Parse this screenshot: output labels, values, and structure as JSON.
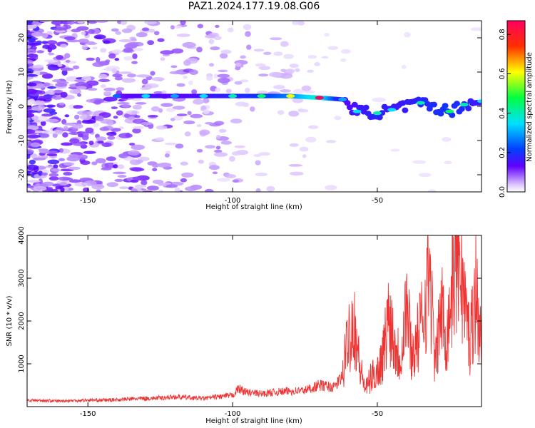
{
  "title": "PAZ1.2024.177.19.08.G06",
  "spectrogram": {
    "type": "heatmap",
    "xlabel": "Height of straight line (km)",
    "ylabel": "Frequency (Hz)",
    "xlim": [
      -171,
      -14
    ],
    "ylim": [
      -25,
      25
    ],
    "xticks": [
      -150,
      -100,
      -50
    ],
    "yticks": [
      -20,
      -10,
      0,
      10,
      20
    ],
    "colorbar": {
      "label": "Normalized spectral amplitude",
      "range": [
        0,
        0.87
      ],
      "ticks": [
        "0.0",
        "0.2",
        "0.4",
        "0.6",
        "0.8"
      ]
    },
    "ridge": [
      {
        "x": -140,
        "f": 3.0,
        "a": 0.25
      },
      {
        "x": -130,
        "f": 3.0,
        "a": 0.35
      },
      {
        "x": -120,
        "f": 3.0,
        "a": 0.3
      },
      {
        "x": -110,
        "f": 3.0,
        "a": 0.35
      },
      {
        "x": -100,
        "f": 3.0,
        "a": 0.4
      },
      {
        "x": -90,
        "f": 3.0,
        "a": 0.45
      },
      {
        "x": -80,
        "f": 3.0,
        "a": 0.6
      },
      {
        "x": -70,
        "f": 2.5,
        "a": 0.87
      },
      {
        "x": -62,
        "f": 2.0,
        "a": 0.3
      },
      {
        "x": -57,
        "f": -1.5,
        "a": 0.35
      },
      {
        "x": -50,
        "f": -2.0,
        "a": 0.4
      },
      {
        "x": -45,
        "f": -1.0,
        "a": 0.35
      },
      {
        "x": -35,
        "f": 1.0,
        "a": 0.4
      },
      {
        "x": -25,
        "f": -1.5,
        "a": 0.45
      },
      {
        "x": -20,
        "f": 0.5,
        "a": 0.4
      },
      {
        "x": -14,
        "f": 1.5,
        "a": 0.35
      }
    ]
  },
  "chart_data": {
    "type": "line",
    "title": "PAZ1.2024.177.19.08.G06",
    "xlabel": "Height of straight line (km)",
    "ylabel": "SNR (10 * v/v)",
    "xlim": [
      -171,
      -14
    ],
    "ylim": [
      0,
      4000
    ],
    "xticks": [
      -150,
      -100,
      -50
    ],
    "yticks": [
      1000,
      2000,
      3000,
      4000
    ],
    "series": [
      {
        "color": "#ee3333",
        "x": [
          -171,
          -165,
          -160,
          -155,
          -150,
          -145,
          -140,
          -135,
          -130,
          -125,
          -120,
          -115,
          -110,
          -105,
          -100,
          -98,
          -95,
          -90,
          -85,
          -80,
          -75,
          -70,
          -65,
          -62,
          -60,
          -58,
          -56,
          -54,
          -52,
          -50,
          -48,
          -46,
          -44,
          -42,
          -40,
          -38,
          -36,
          -34,
          -32,
          -30,
          -28,
          -26,
          -24,
          -22,
          -20,
          -18,
          -16,
          -14
        ],
        "y": [
          150,
          140,
          130,
          140,
          150,
          150,
          160,
          180,
          190,
          200,
          230,
          210,
          190,
          230,
          260,
          420,
          330,
          300,
          340,
          360,
          380,
          500,
          450,
          700,
          1700,
          2000,
          900,
          400,
          700,
          800,
          1200,
          2200,
          1500,
          1100,
          2500,
          1200,
          1600,
          2200,
          3300,
          900,
          2300,
          1600,
          2900,
          4000,
          2500,
          1500,
          2800,
          1300
        ]
      }
    ]
  }
}
